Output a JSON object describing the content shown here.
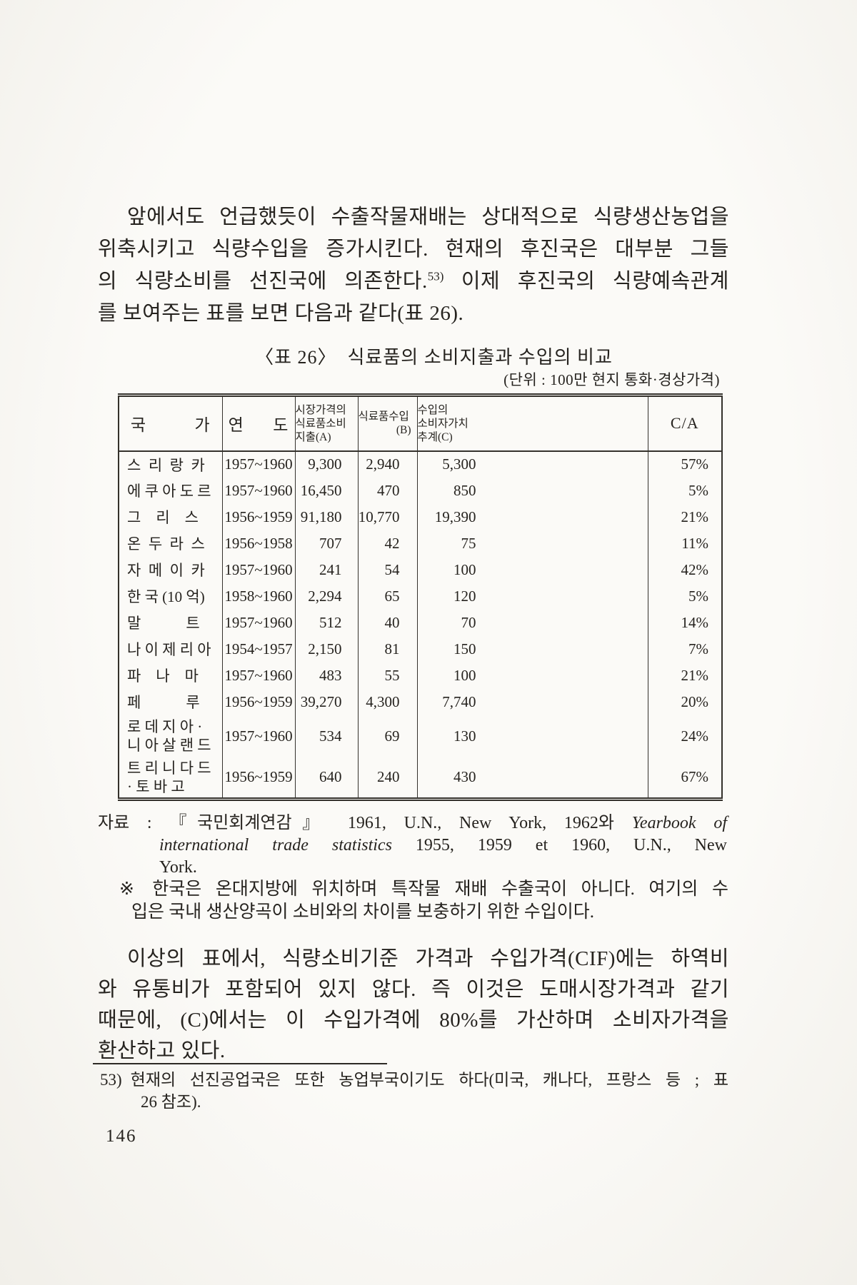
{
  "paragraph1": {
    "line1": "앞에서도 언급했듯이 수출작물재배는 상대적으로 식량생산농업을",
    "line2": "위축시키고 식량수입을 증가시킨다. 현재의 후진국은 대부분 그들",
    "line3_pre": "의 식량소비를 선진국에 의존한다.",
    "line3_sup": "53)",
    "line3_post": " 이제 후진국의 식량예속관계",
    "line4": "를 보여주는 표를 보면 다음과 같다(표 26)."
  },
  "table": {
    "caption": "〈표 26〉  식료품의 소비지출과 수입의 비교",
    "unit": "(단위 : 100만 현지 통화·경상가격)",
    "headers": {
      "country": "국          가",
      "year": "연      도",
      "a1": "시장가격의",
      "a2": "식료품소비",
      "a3": "지출(A)",
      "b1": "식료품수입",
      "b2": "(B)",
      "c1": "수입의",
      "c2": "소비자가치",
      "c3": "추계(C)",
      "ca": "C/A"
    },
    "rows": [
      {
        "country": [
          "스  리  랑  카"
        ],
        "year": "1957~1960",
        "a": "9,300",
        "b": "2,940",
        "c": "5,300",
        "ca": "57%"
      },
      {
        "country": [
          "에 쿠 아 도 르"
        ],
        "year": "1957~1960",
        "a": "16,450",
        "b": "470",
        "c": "850",
        "ca": "5%"
      },
      {
        "country": [
          "그    리    스"
        ],
        "year": "1956~1959",
        "a": "91,180",
        "b": "10,770",
        "c": "19,390",
        "ca": "21%"
      },
      {
        "country": [
          "온  두  라  스"
        ],
        "year": "1956~1958",
        "a": "707",
        "b": "42",
        "c": "75",
        "ca": "11%"
      },
      {
        "country": [
          "자  메  이  카"
        ],
        "year": "1957~1960",
        "a": "241",
        "b": "54",
        "c": "100",
        "ca": "42%"
      },
      {
        "country": [
          "한 국 (10 억)"
        ],
        "year": "1958~1960",
        "a": "2,294",
        "b": "65",
        "c": "120",
        "ca": "5%"
      },
      {
        "country": [
          "말            트"
        ],
        "year": "1957~1960",
        "a": "512",
        "b": "40",
        "c": "70",
        "ca": "14%"
      },
      {
        "country": [
          "나 이 제 리 아"
        ],
        "year": "1954~1957",
        "a": "2,150",
        "b": "81",
        "c": "150",
        "ca": "7%"
      },
      {
        "country": [
          "파    나    마"
        ],
        "year": "1957~1960",
        "a": "483",
        "b": "55",
        "c": "100",
        "ca": "21%"
      },
      {
        "country": [
          "페            루"
        ],
        "year": "1956~1959",
        "a": "39,270",
        "b": "4,300",
        "c": "7,740",
        "ca": "20%"
      },
      {
        "country": [
          "로 데 지 아 ·",
          "니 아 살 랜 드"
        ],
        "year": "1957~1960",
        "a": "534",
        "b": "69",
        "c": "130",
        "ca": "24%"
      },
      {
        "country": [
          "트 리 니 다 드",
          "· 토 바 고"
        ],
        "year": "1956~1959",
        "a": "640",
        "b": "240",
        "c": "430",
        "ca": "67%"
      }
    ]
  },
  "source_note": {
    "label": "자료 :",
    "line1_text": "『국민회계연감』 1961, U.N., New York, 1962와 ",
    "line1_italic": "Yearbook of",
    "line2_italic": "international trade statistics",
    "line2_text": " 1955, 1959 et 1960, U.N., New",
    "line3": "York."
  },
  "remark_note": {
    "marker": "※",
    "line1": "한국은 온대지방에 위치하며 특작물 재배 수출국이 아니다. 여기의 수",
    "line2": "입은 국내 생산양곡이 소비와의 차이를 보충하기 위한 수입이다."
  },
  "paragraph2": {
    "line1": "이상의 표에서, 식량소비기준 가격과 수입가격(CIF)에는 하역비",
    "line2": "와 유통비가 포함되어 있지 않다. 즉 이것은 도매시장가격과 같기",
    "line3": "때문에, (C)에서는 이 수입가격에 80%를 가산하며 소비자가격을",
    "line4": "환산하고 있다."
  },
  "footnote": {
    "marker": "53)",
    "line1": "현재의 선진공업국은 또한 농업부국이기도 하다(미국, 캐나다, 프랑스 등 ; 표",
    "line2": "26 참조)."
  },
  "page": {
    "number": "146"
  }
}
